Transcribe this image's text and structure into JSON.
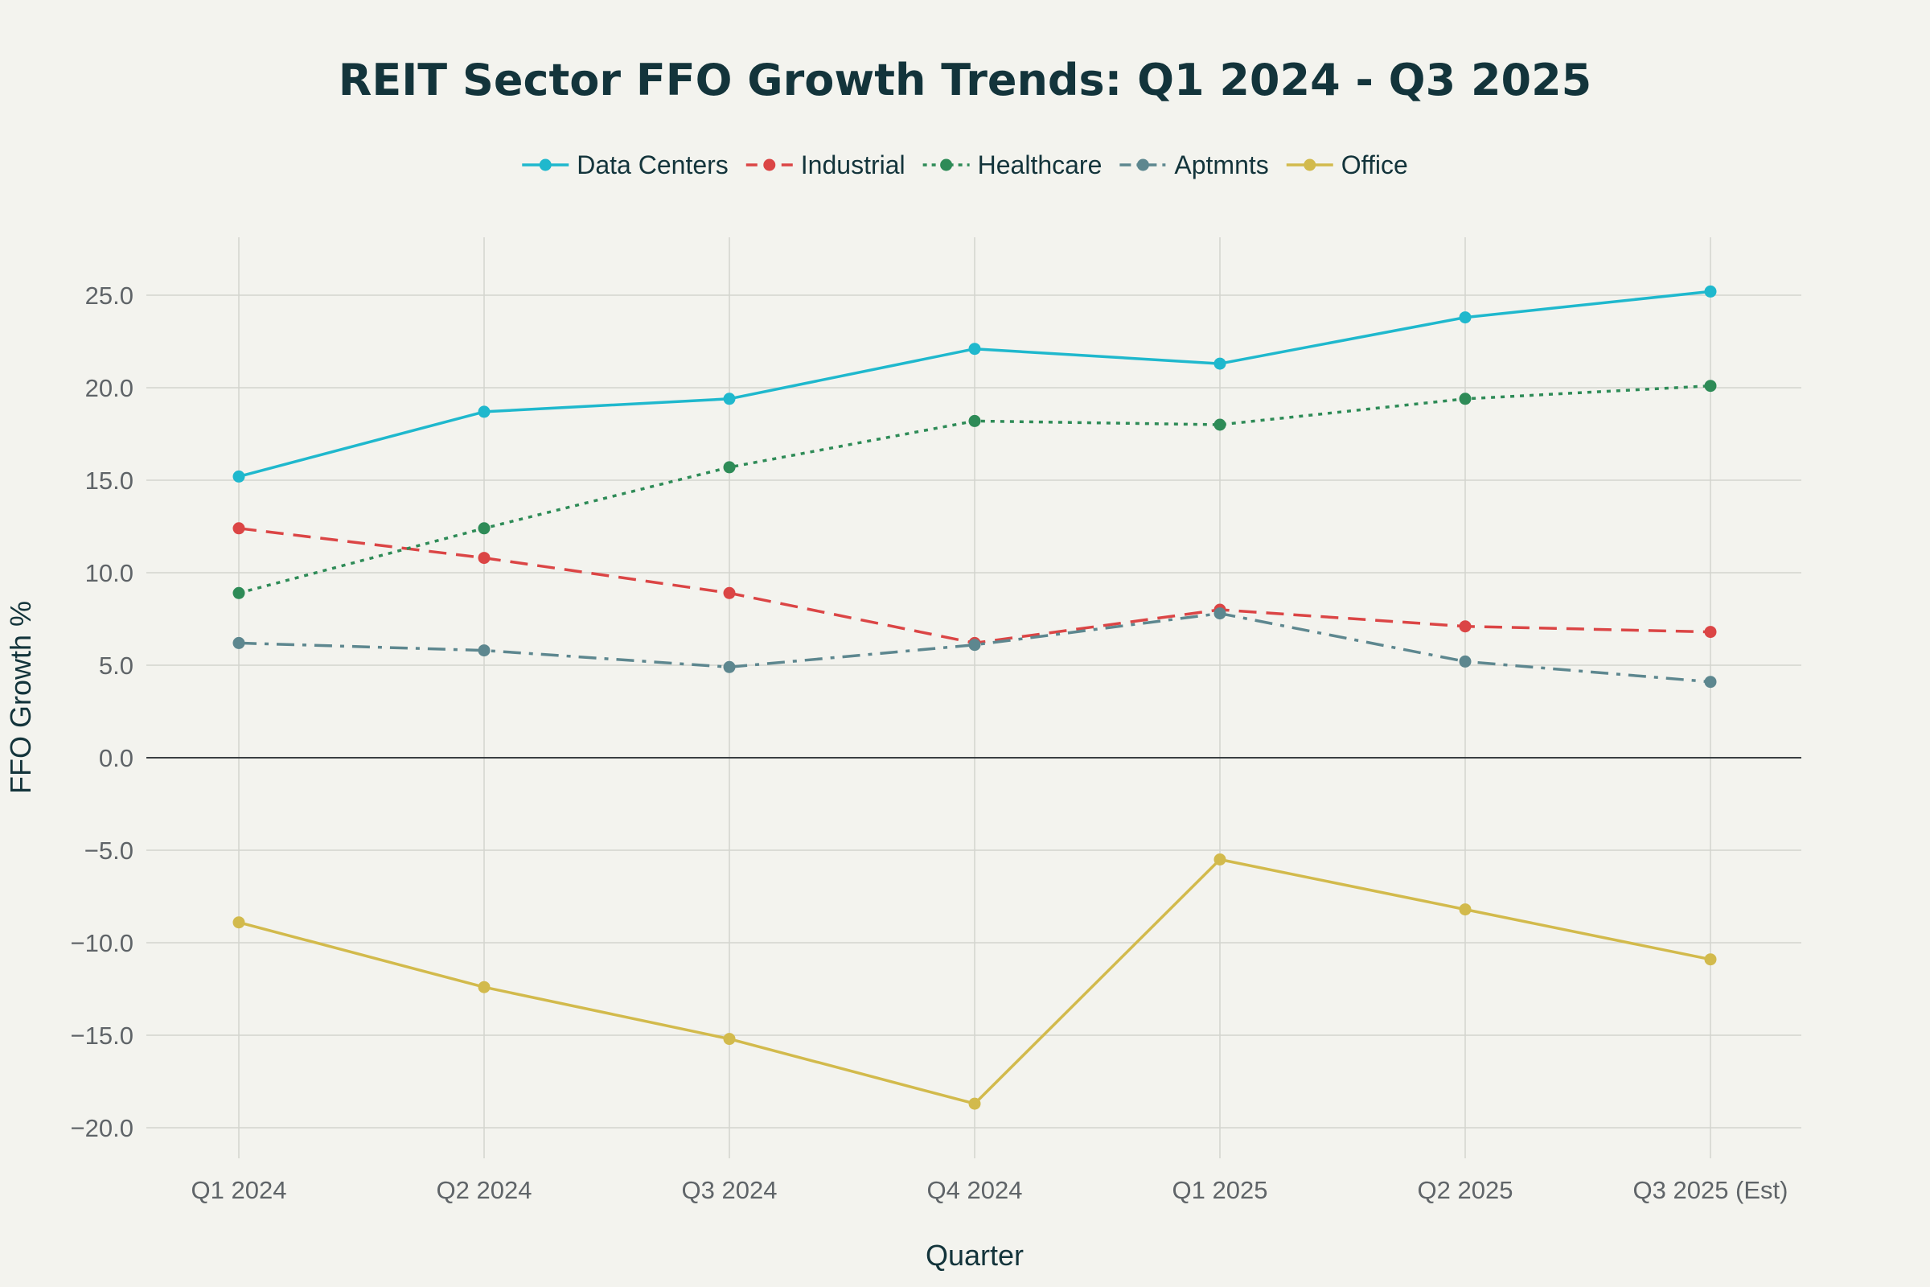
{
  "chart_data": {
    "type": "line",
    "title": "REIT Sector FFO Growth Trends: Q1 2024 - Q3 2025",
    "xlabel": "Quarter",
    "ylabel": "FFO Growth %",
    "categories": [
      "Q1 2024",
      "Q2 2024",
      "Q3 2024",
      "Q4 2024",
      "Q1 2025",
      "Q2 2025",
      "Q3 2025 (Est)"
    ],
    "ylim": [
      -21,
      28
    ],
    "yticks": [
      25,
      20,
      15,
      10,
      5,
      0,
      -5,
      -10,
      -15,
      -20
    ],
    "ytick_labels": [
      "25.0",
      "20.0",
      "15.0",
      "10.0",
      "5.0",
      "0.0",
      "−5.0",
      "−10.0",
      "−15.0",
      "−20.0"
    ],
    "grid": true,
    "legend_position": "top-center",
    "series": [
      {
        "name": "Data Centers",
        "color": "#1fb8cd",
        "dash": "solid",
        "values": [
          15.2,
          18.7,
          19.4,
          22.1,
          21.3,
          23.8,
          25.2
        ]
      },
      {
        "name": "Industrial",
        "color": "#db4545",
        "dash": "dash",
        "values": [
          12.4,
          10.8,
          8.9,
          6.2,
          8.0,
          7.1,
          6.8
        ]
      },
      {
        "name": "Healthcare",
        "color": "#2e8b57",
        "dash": "dot",
        "values": [
          8.9,
          12.4,
          15.7,
          18.2,
          18.0,
          19.4,
          20.1
        ]
      },
      {
        "name": "Aptmnts",
        "color": "#5d878f",
        "dash": "dashdot",
        "values": [
          6.2,
          5.8,
          4.9,
          6.1,
          7.8,
          5.2,
          4.1
        ]
      },
      {
        "name": "Office",
        "color": "#d2ba4c",
        "dash": "solid",
        "values": [
          -8.9,
          -12.4,
          -15.2,
          -18.7,
          -5.5,
          -8.2,
          -10.9
        ]
      }
    ]
  }
}
